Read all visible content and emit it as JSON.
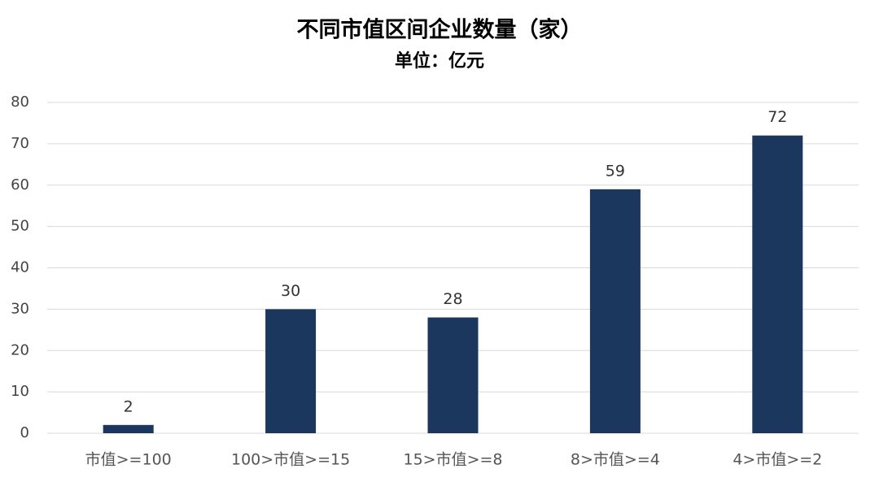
{
  "chart_data": {
    "type": "bar",
    "title": "不同市值区间企业数量（家）",
    "subtitle": "单位：亿元",
    "categories": [
      "市值>=100",
      "100>市值>=15",
      "15>市值>=8",
      "8>市值>=4",
      "4>市值>=2"
    ],
    "values": [
      2,
      30,
      28,
      59,
      72
    ],
    "color": "#1c375e",
    "ylim": [
      0,
      80
    ],
    "yticks": [
      0,
      10,
      20,
      30,
      40,
      50,
      60,
      70,
      80
    ],
    "grid": true
  }
}
